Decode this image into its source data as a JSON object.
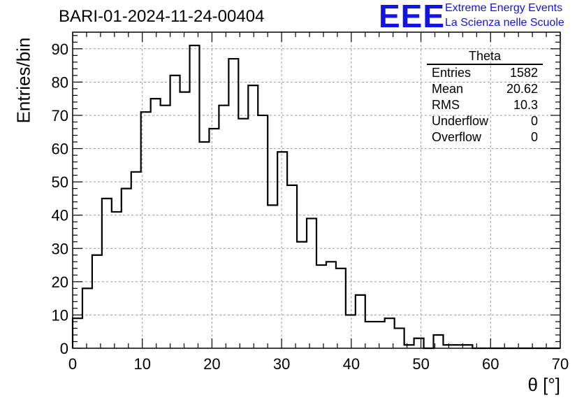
{
  "title": "BARI-01-2024-11-24-00404",
  "logo": {
    "mark": "EEE",
    "line1": "Extreme Energy Events",
    "line2": "La Scienza nelle Scuole",
    "color": "#1414e0"
  },
  "stats": {
    "title": "Theta",
    "rows": [
      {
        "label": "Entries",
        "value": "1582"
      },
      {
        "label": "Mean",
        "value": "20.62"
      },
      {
        "label": "RMS",
        "value": "10.3"
      },
      {
        "label": "Underflow",
        "value": "0"
      },
      {
        "label": "Overflow",
        "value": "0"
      }
    ]
  },
  "chart_data": {
    "type": "bar",
    "style": "step-histogram",
    "xlabel": "θ [°]",
    "ylabel": "Entries/bin",
    "xlim": [
      0,
      70
    ],
    "ylim": [
      0,
      95
    ],
    "grid": true,
    "bin_width": 1.4,
    "x_ticks": [
      0,
      10,
      20,
      30,
      40,
      50,
      60,
      70
    ],
    "y_ticks": [
      0,
      10,
      20,
      30,
      40,
      50,
      60,
      70,
      80,
      90
    ],
    "bin_edges": [
      0,
      1.4,
      2.8,
      4.2,
      5.6,
      7.0,
      8.4,
      9.8,
      11.2,
      12.6,
      14.0,
      15.4,
      16.8,
      18.2,
      19.6,
      21.0,
      22.4,
      23.8,
      25.2,
      26.6,
      28.0,
      29.4,
      30.8,
      32.2,
      33.6,
      35.0,
      36.4,
      37.8,
      39.2,
      40.6,
      42.0,
      43.4,
      44.8,
      46.2,
      47.6,
      49.0,
      50.4,
      51.8,
      53.2,
      54.6,
      56.0,
      57.4,
      58.8,
      60.2,
      61.6,
      63.0,
      64.4,
      65.8,
      67.2,
      68.6,
      70.0
    ],
    "values": [
      9,
      18,
      28,
      45,
      41,
      48,
      53,
      71,
      75,
      73,
      82,
      77,
      91,
      62,
      66,
      73,
      87,
      69,
      79,
      70,
      43,
      59,
      49,
      32,
      39,
      25,
      26,
      24,
      10,
      16,
      8,
      8,
      9,
      6,
      1,
      3,
      0,
      4,
      1,
      1,
      1,
      0,
      0,
      0,
      0,
      0,
      0,
      0,
      0,
      0
    ],
    "line_color": "#000000",
    "grid_color": "#9a9a9a"
  }
}
